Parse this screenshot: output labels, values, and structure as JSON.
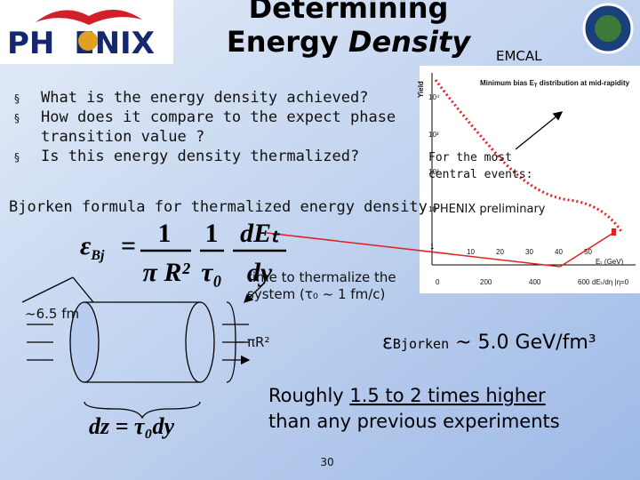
{
  "logo": {
    "left": "PH",
    "right": "ENIX"
  },
  "header": {
    "title_line1": "Determining",
    "title_line2a": "Energy ",
    "title_line2b": "Density",
    "label": "EMCAL"
  },
  "bullets": [
    "What is the energy density achieved?",
    "How does it compare to the expect phase",
    "transition value ?",
    "Is this energy density thermalized?"
  ],
  "plot": {
    "y_label": "Yield",
    "caption": "Minimum bias E",
    "caption_sub": "T",
    "caption_rest": " distribution at mid-rapidity",
    "y_ticks": [
      "10⁴",
      "10³",
      "10²",
      "10",
      "1"
    ],
    "x_ticks_top": [
      "10",
      "20",
      "30",
      "40",
      "50"
    ],
    "x_label_top": "Eₜ (GeV)",
    "x_ticks_bottom": [
      "0",
      "200",
      "400",
      "600"
    ],
    "x_label_bottom": "dEₜ/dη |η=0",
    "note_line1": "For the most",
    "note_line2": "central events:",
    "preliminary": "PHENIX preliminary"
  },
  "formula_label": "Bjorken formula for thermalized energy density",
  "formula": {
    "lhs": "ε",
    "lhs_sub": "Bj",
    "eq": "=",
    "num1": "1",
    "den1": "π R²",
    "num2": "1",
    "den2": "τ₀",
    "num3": "dEₜ",
    "den3": "dy"
  },
  "formula2": "dz = τ₀dy",
  "annotations": {
    "size": "~6.5 fm",
    "time_line1": "time to thermalize the",
    "time_line2": "system (τ₀ ~  1 fm/c)",
    "area": "πR²",
    "result_symbol": "ε",
    "result_sub": "Bjorken",
    "result": " ~ 5.0 GeV/fm³",
    "comparison_a": "Roughly ",
    "comparison_u": "1.5 to 2 times higher",
    "comparison_b": "than any previous experiments"
  },
  "page_number": "30"
}
